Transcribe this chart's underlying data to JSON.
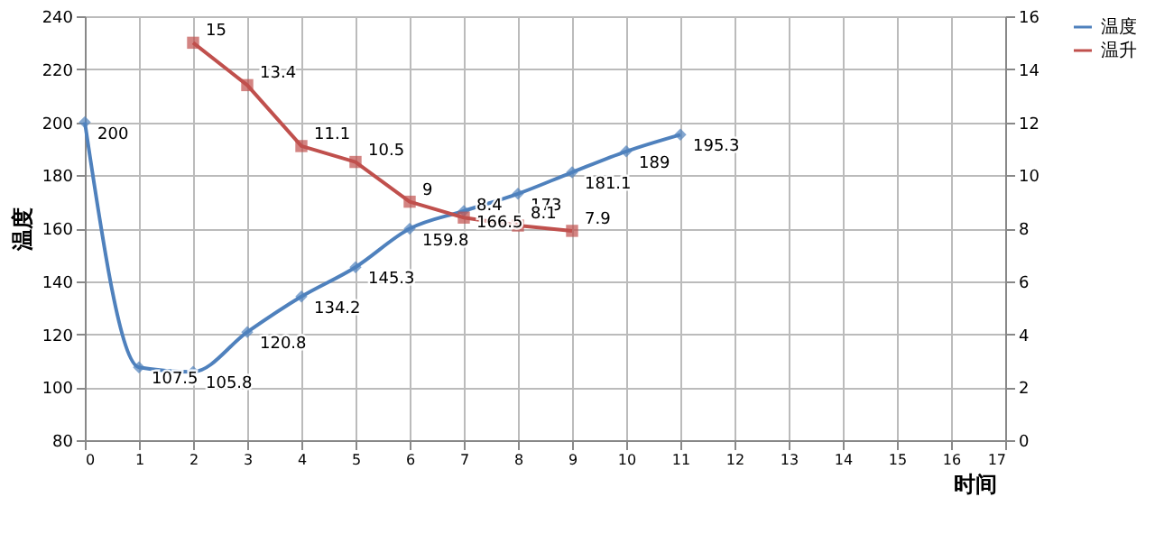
{
  "chart_data": {
    "type": "line",
    "xlabel": "时间",
    "ylabel": "温度",
    "xlim": [
      0,
      17
    ],
    "xticks": [
      0,
      1,
      2,
      3,
      4,
      5,
      6,
      7,
      8,
      9,
      10,
      11,
      12,
      13,
      14,
      15,
      16,
      17
    ],
    "ylim": [
      80,
      240
    ],
    "yticks": [
      80,
      100,
      120,
      140,
      160,
      180,
      200,
      220,
      240
    ],
    "y2lim": [
      0,
      16
    ],
    "y2ticks": [
      0,
      2,
      4,
      6,
      8,
      10,
      12,
      14,
      16
    ],
    "grid": true,
    "legend": "right",
    "data_labels": true,
    "series": [
      {
        "name": "温度",
        "color": "#4f81bd",
        "marker": "diamond",
        "x": [
          0,
          1,
          2,
          3,
          4,
          5,
          6,
          7,
          8,
          9,
          10,
          11
        ],
        "values": [
          200,
          107.5,
          105.8,
          120.8,
          134.2,
          145.3,
          159.8,
          166.5,
          173,
          181.1,
          189,
          195.3
        ]
      },
      {
        "name": "温升",
        "color": "#c0504d",
        "marker": "square",
        "axis": "y2",
        "x": [
          2,
          3,
          4,
          5,
          6,
          7,
          8,
          9
        ],
        "values": [
          15,
          13.4,
          11.1,
          10.5,
          9,
          8.4,
          8.1,
          7.9
        ]
      }
    ]
  }
}
